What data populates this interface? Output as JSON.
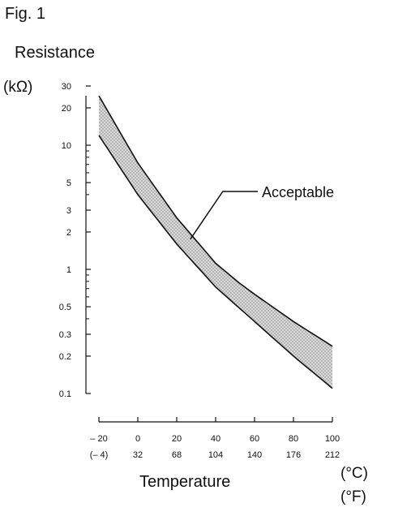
{
  "figure": {
    "label": "Fig. 1",
    "ylabel": "Resistance",
    "yunit": "(kΩ)",
    "xlabel": "Temperature",
    "xunit_c": "(°C)",
    "xunit_f": "(°F)"
  },
  "chart_data": {
    "type": "area",
    "yscale": "log",
    "ylim": [
      0.1,
      30
    ],
    "xlim": [
      -20,
      100
    ],
    "y_ticks": [
      {
        "value": 30,
        "label": "30"
      },
      {
        "value": 20,
        "label": "20"
      },
      {
        "value": 10,
        "label": "10"
      },
      {
        "value": 5,
        "label": "5"
      },
      {
        "value": 3,
        "label": "3"
      },
      {
        "value": 2,
        "label": "2"
      },
      {
        "value": 1,
        "label": "1"
      },
      {
        "value": 0.5,
        "label": "0.5"
      },
      {
        "value": 0.3,
        "label": "0.3"
      },
      {
        "value": 0.2,
        "label": "0.2"
      },
      {
        "value": 0.1,
        "label": "0.1"
      }
    ],
    "x_ticks": [
      {
        "value": -20,
        "label_c": "– 20",
        "label_f": "(– 4)"
      },
      {
        "value": 0,
        "label_c": "0",
        "label_f": "32"
      },
      {
        "value": 20,
        "label_c": "20",
        "label_f": "68"
      },
      {
        "value": 40,
        "label_c": "40",
        "label_f": "104"
      },
      {
        "value": 60,
        "label_c": "60",
        "label_f": "140"
      },
      {
        "value": 80,
        "label_c": "80",
        "label_f": "176"
      },
      {
        "value": 100,
        "label_c": "100",
        "label_f": "212"
      }
    ],
    "series": [
      {
        "role": "upper",
        "x": [
          -20,
          0,
          20,
          40,
          52,
          60,
          80,
          100
        ],
        "y": [
          25,
          7.2,
          2.6,
          1.12,
          0.78,
          0.63,
          0.38,
          0.24
        ]
      },
      {
        "role": "lower",
        "x": [
          -20,
          0,
          20,
          40,
          60,
          80,
          100
        ],
        "y": [
          12,
          4.0,
          1.6,
          0.72,
          0.38,
          0.2,
          0.11
        ]
      }
    ],
    "band_label": "Acceptable",
    "colors": {
      "line": "#111111",
      "band_fill": "#cfcfcf",
      "band_dots": "#9a9a9a"
    }
  }
}
